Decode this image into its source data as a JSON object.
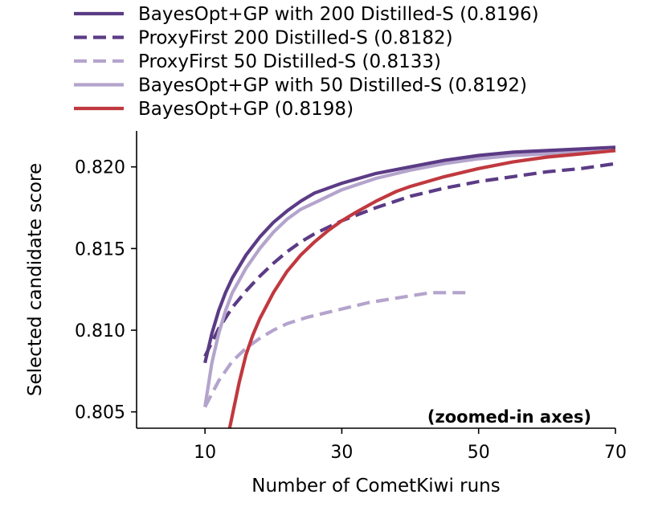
{
  "chart_data": {
    "type": "line",
    "title": "",
    "xlabel": "Number of CometKiwi runs",
    "ylabel": "Selected candidate score",
    "xlim": [
      0,
      70
    ],
    "ylim": [
      0.804,
      0.8222
    ],
    "xticks": [
      10,
      30,
      50,
      70
    ],
    "yticks": [
      0.805,
      0.81,
      0.815,
      0.82
    ],
    "xtick_labels": [
      "10",
      "30",
      "50",
      "70"
    ],
    "ytick_labels": [
      "0.805",
      "0.810",
      "0.815",
      "0.820"
    ],
    "annotation": "(zoomed-in axes)",
    "legend_position": "top (above plot)",
    "series": [
      {
        "name": "BayesOpt+GP with 200 Distilled-S (0.8196)",
        "color": "#5b3b85",
        "dash": "solid",
        "x": [
          10,
          11,
          12,
          13,
          14,
          16,
          18,
          20,
          22,
          24,
          26,
          28,
          30,
          35,
          40,
          45,
          50,
          55,
          60,
          65,
          70
        ],
        "y": [
          0.808,
          0.8098,
          0.8112,
          0.8123,
          0.8132,
          0.8146,
          0.8157,
          0.8166,
          0.8173,
          0.8179,
          0.8184,
          0.8187,
          0.819,
          0.8196,
          0.82,
          0.8204,
          0.8207,
          0.8209,
          0.821,
          0.8211,
          0.8212
        ]
      },
      {
        "name": "ProxyFirst 200 Distilled-S (0.8182)",
        "color": "#5b3b85",
        "dash": "dashed",
        "x": [
          10,
          12,
          14,
          16,
          18,
          20,
          22,
          24,
          26,
          28,
          30,
          35,
          40,
          45,
          50,
          55,
          60,
          65,
          70
        ],
        "y": [
          0.8084,
          0.8101,
          0.8114,
          0.8124,
          0.8133,
          0.8141,
          0.8148,
          0.8154,
          0.8159,
          0.8163,
          0.8167,
          0.8175,
          0.8182,
          0.8187,
          0.8191,
          0.8194,
          0.8197,
          0.8199,
          0.8202
        ]
      },
      {
        "name": "ProxyFirst 50 Distilled-S (0.8133)",
        "color": "#b4a4cc",
        "dash": "dashed",
        "x": [
          10,
          12,
          14,
          16,
          18,
          20,
          22,
          25,
          28,
          31,
          34,
          37,
          40,
          43,
          46,
          49
        ],
        "y": [
          0.8053,
          0.8069,
          0.8081,
          0.8089,
          0.8095,
          0.81,
          0.8104,
          0.8108,
          0.8111,
          0.8114,
          0.8117,
          0.8119,
          0.8121,
          0.8123,
          0.8123,
          0.8123
        ]
      },
      {
        "name": "BayesOpt+GP with 50 Distilled-S (0.8192)",
        "color": "#b4a4cc",
        "dash": "solid",
        "x": [
          10,
          11,
          12,
          13,
          14,
          16,
          18,
          20,
          22,
          24,
          26,
          28,
          30,
          35,
          40,
          45,
          50,
          55,
          60,
          65,
          70
        ],
        "y": [
          0.8053,
          0.808,
          0.8098,
          0.8112,
          0.8123,
          0.8138,
          0.815,
          0.816,
          0.8168,
          0.8174,
          0.8178,
          0.8182,
          0.8186,
          0.8193,
          0.8198,
          0.8202,
          0.8205,
          0.8207,
          0.8208,
          0.8209,
          0.821
        ]
      },
      {
        "name": "BayesOpt+GP (0.8198)",
        "color": "#c0393f",
        "dash": "solid",
        "x": [
          13.6,
          15,
          16,
          17,
          18,
          20,
          22,
          24,
          26,
          28,
          30,
          32,
          35,
          38,
          40,
          45,
          50,
          55,
          60,
          65,
          70
        ],
        "y": [
          0.804,
          0.8068,
          0.8085,
          0.8097,
          0.8107,
          0.8123,
          0.8136,
          0.8146,
          0.8154,
          0.8161,
          0.8167,
          0.8172,
          0.8179,
          0.8185,
          0.8188,
          0.8194,
          0.8199,
          0.8203,
          0.8206,
          0.8208,
          0.821
        ]
      }
    ]
  }
}
